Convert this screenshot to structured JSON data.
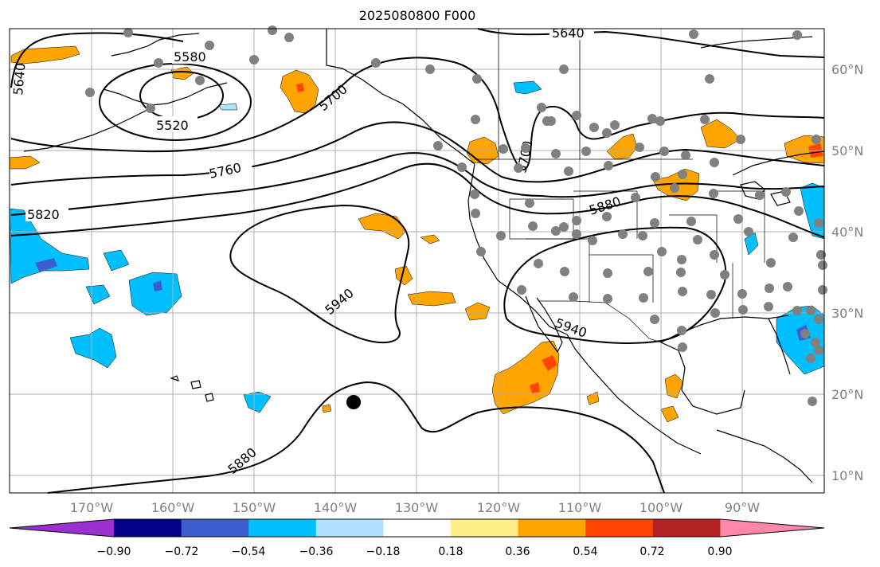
{
  "title": "2025080800 F000",
  "lon_ticks": [
    "170°W",
    "160°W",
    "150°W",
    "140°W",
    "130°W",
    "120°W",
    "110°W",
    "100°W",
    "90°W"
  ],
  "lat_ticks": [
    "60°N",
    "50°N",
    "40°N",
    "30°N",
    "20°N",
    "10°N"
  ],
  "contour_labels": [
    "5640",
    "5580",
    "5520",
    "5700",
    "5760",
    "5820",
    "5880",
    "5940",
    "5940",
    "5700",
    "5640",
    "5880"
  ],
  "colorbar": {
    "ticks": [
      "−0.90",
      "−0.72",
      "−0.54",
      "−0.36",
      "−0.18",
      "0.18",
      "0.36",
      "0.54",
      "0.72",
      "0.90"
    ],
    "colors": [
      "#9b30d0",
      "#00008b",
      "#3a5fcd",
      "#00bfff",
      "#b0e2ff",
      "#ffffff",
      "#ffee88",
      "#ffa500",
      "#ff4500",
      "#b22222",
      "#ff88aa"
    ]
  },
  "colors": {
    "contour": "#000000",
    "station_dot": "#808080",
    "grid": "#b0b0b0",
    "orange": "#ffa500",
    "red": "#ff4500",
    "blue": "#00bfff",
    "lightblue": "#b0e2ff",
    "indigo": "#3a5fcd"
  }
}
